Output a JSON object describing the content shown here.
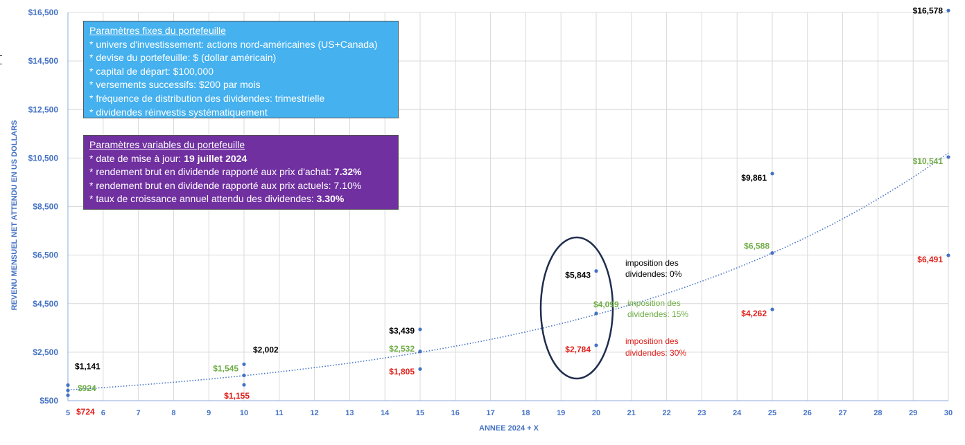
{
  "chart_data": {
    "type": "scatter",
    "xlabel": "ANNEE 2024 + X",
    "ylabel": "REVENU MENSUEL NET ATTENDU EN US DOLLARS",
    "xlim": [
      5,
      30
    ],
    "ylim": [
      500,
      16500
    ],
    "x_ticks": [
      "5",
      "6",
      "7",
      "8",
      "9",
      "10",
      "11",
      "12",
      "13",
      "14",
      "15",
      "16",
      "17",
      "18",
      "19",
      "20",
      "21",
      "22",
      "23",
      "24",
      "25",
      "26",
      "27",
      "28",
      "29",
      "30"
    ],
    "y_ticks": [
      "$500",
      "$2,500",
      "$4,500",
      "$6,500",
      "$8,500",
      "$10,500",
      "$12,500",
      "$14,500",
      "$16,500"
    ],
    "y_tick_values": [
      500,
      2500,
      4500,
      6500,
      8500,
      10500,
      12500,
      14500,
      16500
    ],
    "grid": true,
    "colors": {
      "tax0": "#000000",
      "tax15": "#70ad47",
      "tax30": "#e0201b",
      "points": "#4472c4",
      "axis": "#4472c4"
    },
    "series": [
      {
        "name": "imposition des dividendes: 0%",
        "x": [
          5,
          10,
          15,
          20,
          25,
          30
        ],
        "y": [
          1141,
          2002,
          3439,
          5843,
          9861,
          16578
        ],
        "labels": [
          "$1,141",
          "$2,002",
          "$3,439",
          "$5,843",
          "$9,861",
          "$16,578"
        ]
      },
      {
        "name": "imposition des dividendes: 15%",
        "x": [
          5,
          10,
          15,
          20,
          25,
          30
        ],
        "y": [
          924,
          1545,
          2532,
          4099,
          6588,
          10541
        ],
        "labels": [
          "$924",
          "$1,545",
          "$2,532",
          "$4,099",
          "$6,588",
          "$10,541"
        ]
      },
      {
        "name": "imposition des dividendes: 30%",
        "x": [
          5,
          10,
          15,
          20,
          25,
          30
        ],
        "y": [
          724,
          1155,
          1805,
          2784,
          4262,
          6491
        ],
        "labels": [
          "$724",
          "$1,155",
          "$1,805",
          "$2,784",
          "$4,262",
          "$6,491"
        ]
      }
    ],
    "trendline": {
      "series": "imposition des dividendes: 15%",
      "type": "exponential",
      "style": "dotted"
    },
    "annotations": [
      {
        "text": "imposition des",
        "text2": "dividendes: 0%",
        "color": "#000000"
      },
      {
        "text": "imposition des",
        "text2": "dividendes: 15%",
        "color": "#70ad47"
      },
      {
        "text": "imposition des",
        "text2": "dividendes: 30%",
        "color": "#e0201b"
      }
    ]
  },
  "info_fixed": {
    "title": "Paramètres fixes du portefeuille",
    "lines": [
      "* univers d'investissement: actions nord-américaines (US+Canada)",
      "* devise du portefeuille: $ (dollar américain)",
      "* capital de départ: $100,000",
      "* versements successifs: $200 par mois",
      "* fréquence de distribution des dividendes: trimestrielle",
      "* dividendes réinvestis systématiquement"
    ]
  },
  "info_variable": {
    "title": "Paramètres variables du portefeuille",
    "l1_prefix": "* date de mise à jour: ",
    "l1_bold": "19 juillet 2024",
    "l2_prefix": "* rendement brut en dividende rapporté aux prix d'achat: ",
    "l2_bold": "7.32%",
    "l3": "* rendement brut en dividende rapporté aux prix actuels: 7.10%",
    "l4_prefix": "* taux de croissance annuel attendu des dividendes: ",
    "l4_bold": "3.30%"
  }
}
